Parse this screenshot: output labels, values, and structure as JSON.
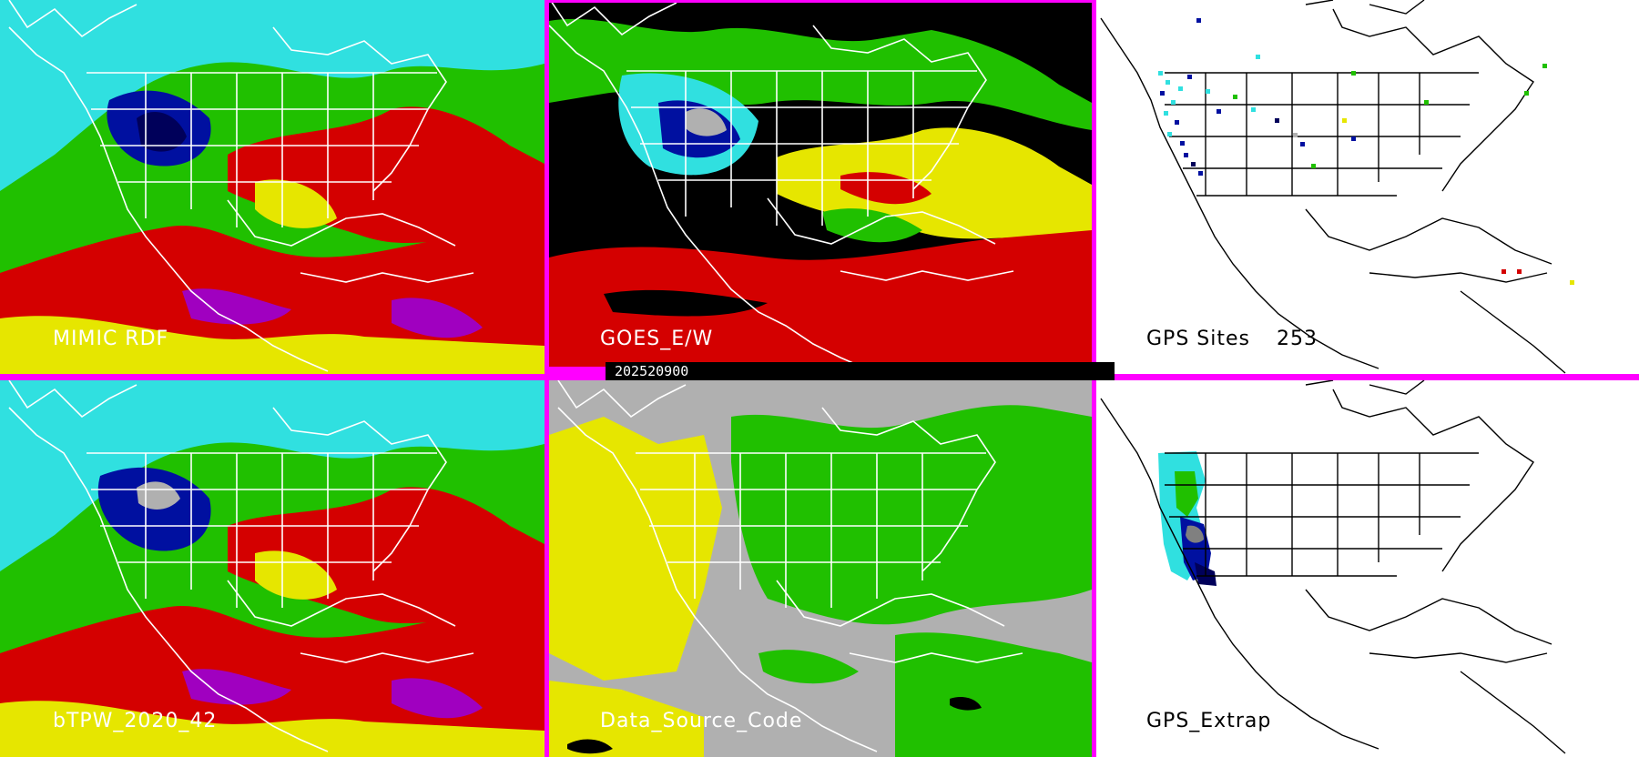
{
  "panels": {
    "mimic_rdf": {
      "label": "MIMIC RDF"
    },
    "goes_ew": {
      "label": "GOES_E/W"
    },
    "gps_sites": {
      "label": "GPS Sites",
      "count": "253"
    },
    "btpw": {
      "label": "bTPW_2020_42"
    },
    "data_source": {
      "label": "Data_Source_Code"
    },
    "gps_extrap": {
      "label": "GPS_Extrap"
    }
  },
  "timestamp": "202520900",
  "colors": {
    "red": "#d40000",
    "yellow": "#e6e600",
    "green": "#20c000",
    "cyan": "#30e0e0",
    "blue": "#0010a0",
    "darkblue": "#00005a",
    "purple": "#a000c0",
    "gray": "#b0b0b0",
    "black": "#000000",
    "separator": "#ff00ff"
  }
}
